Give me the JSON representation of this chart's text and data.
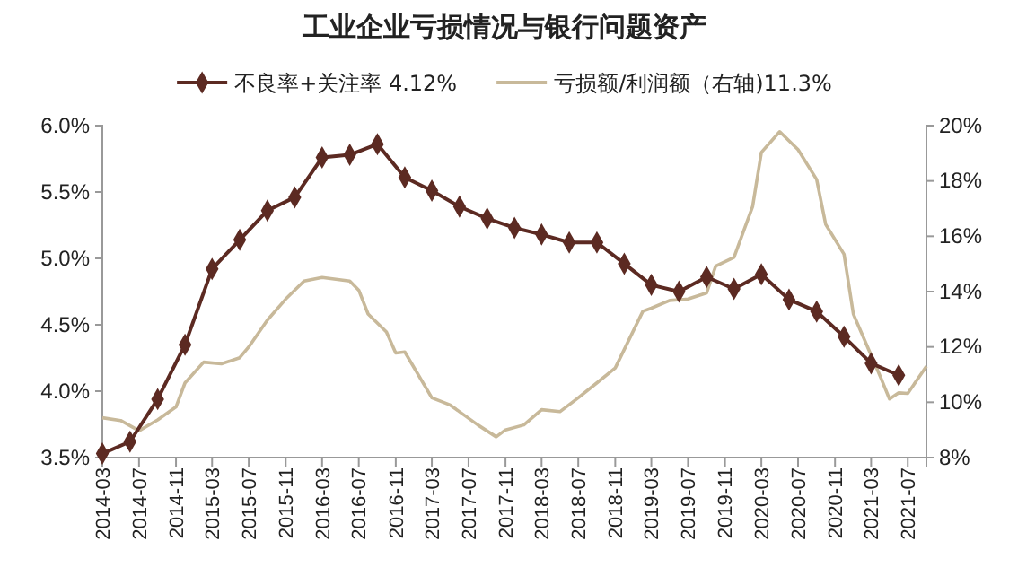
{
  "chart_data": {
    "type": "line",
    "title": "工业企业亏损情况与银行问题资产",
    "legend": "top",
    "grid": false,
    "xlim": [
      "2014-03",
      "2021-09"
    ],
    "xticks": [
      "2014-03",
      "2014-07",
      "2014-11",
      "2015-03",
      "2015-07",
      "2015-11",
      "2016-03",
      "2016-07",
      "2016-11",
      "2017-03",
      "2017-07",
      "2017-11",
      "2018-03",
      "2018-07",
      "2018-11",
      "2019-03",
      "2019-07",
      "2019-11",
      "2020-03",
      "2020-07",
      "2020-11",
      "2021-03",
      "2021-07"
    ],
    "ylim": [
      3.5,
      6.0
    ],
    "yticks": [
      {
        "value": 3.5,
        "label": "3.5%"
      },
      {
        "value": 4.0,
        "label": "4.0%"
      },
      {
        "value": 4.5,
        "label": "4.5%"
      },
      {
        "value": 5.0,
        "label": "5.0%"
      },
      {
        "value": 5.5,
        "label": "5.5%"
      },
      {
        "value": 6.0,
        "label": "6.0%"
      }
    ],
    "y2lim": [
      8,
      20
    ],
    "y2ticks": [
      {
        "value": 8,
        "label": "8%"
      },
      {
        "value": 10,
        "label": "10%"
      },
      {
        "value": 12,
        "label": "12%"
      },
      {
        "value": 14,
        "label": "14%"
      },
      {
        "value": 16,
        "label": "16%"
      },
      {
        "value": 18,
        "label": "18%"
      },
      {
        "value": 20,
        "label": "20%"
      }
    ],
    "series": [
      {
        "name": "不良率+关注率  4.12%",
        "color": "#5c2a22",
        "marker": "diamond",
        "x": [
          "2014-03",
          "2014-06",
          "2014-09",
          "2014-12",
          "2015-03",
          "2015-06",
          "2015-09",
          "2015-12",
          "2016-03",
          "2016-06",
          "2016-09",
          "2016-12",
          "2017-03",
          "2017-06",
          "2017-09",
          "2017-12",
          "2018-03",
          "2018-06",
          "2018-09",
          "2018-12",
          "2019-03",
          "2019-06",
          "2019-09",
          "2019-12",
          "2020-03",
          "2020-06",
          "2020-09",
          "2020-12",
          "2021-03",
          "2021-06"
        ],
        "values": [
          3.53,
          3.62,
          3.94,
          4.35,
          4.92,
          5.14,
          5.36,
          5.46,
          5.76,
          5.78,
          5.86,
          5.61,
          5.51,
          5.39,
          5.3,
          5.23,
          5.18,
          5.12,
          5.12,
          4.96,
          4.8,
          4.75,
          4.86,
          4.77,
          4.88,
          4.69,
          4.6,
          4.41,
          4.21,
          4.12
        ]
      },
      {
        "name": "亏损额/利润额（右轴)11.3%",
        "color": "#c8b99a",
        "axis": "y2",
        "marker": "none",
        "x": [
          "2014-03",
          "2014-05",
          "2014-07",
          "2014-09",
          "2014-11",
          "2014-12",
          "2015-02",
          "2015-04",
          "2015-06",
          "2015-07",
          "2015-09",
          "2015-11",
          "2016-01",
          "2016-03",
          "2016-06",
          "2016-07",
          "2016-08",
          "2016-10",
          "2016-11",
          "2016-12",
          "2017-03",
          "2017-05",
          "2017-08",
          "2017-10",
          "2017-11",
          "2018-01",
          "2018-03",
          "2018-05",
          "2018-07",
          "2018-09",
          "2018-11",
          "2019-02",
          "2019-03",
          "2019-05",
          "2019-07",
          "2019-09",
          "2019-10",
          "2019-12",
          "2020-02",
          "2020-03",
          "2020-05",
          "2020-07",
          "2020-09",
          "2020-10",
          "2020-12",
          "2021-01",
          "2021-04",
          "2021-05",
          "2021-06",
          "2021-07",
          "2021-09"
        ],
        "values": [
          9.44,
          9.34,
          8.97,
          9.36,
          9.83,
          10.7,
          11.45,
          11.39,
          11.61,
          12.0,
          12.97,
          13.73,
          14.38,
          14.51,
          14.38,
          14.05,
          13.19,
          12.54,
          11.78,
          11.82,
          10.16,
          9.9,
          9.18,
          8.75,
          9.0,
          9.18,
          9.73,
          9.66,
          10.16,
          10.7,
          11.24,
          13.29,
          13.4,
          13.68,
          13.73,
          13.95,
          14.92,
          15.24,
          17.08,
          19.03,
          19.78,
          19.13,
          18.05,
          16.43,
          15.35,
          13.19,
          10.92,
          10.12,
          10.34,
          10.32,
          11.3
        ]
      }
    ]
  }
}
